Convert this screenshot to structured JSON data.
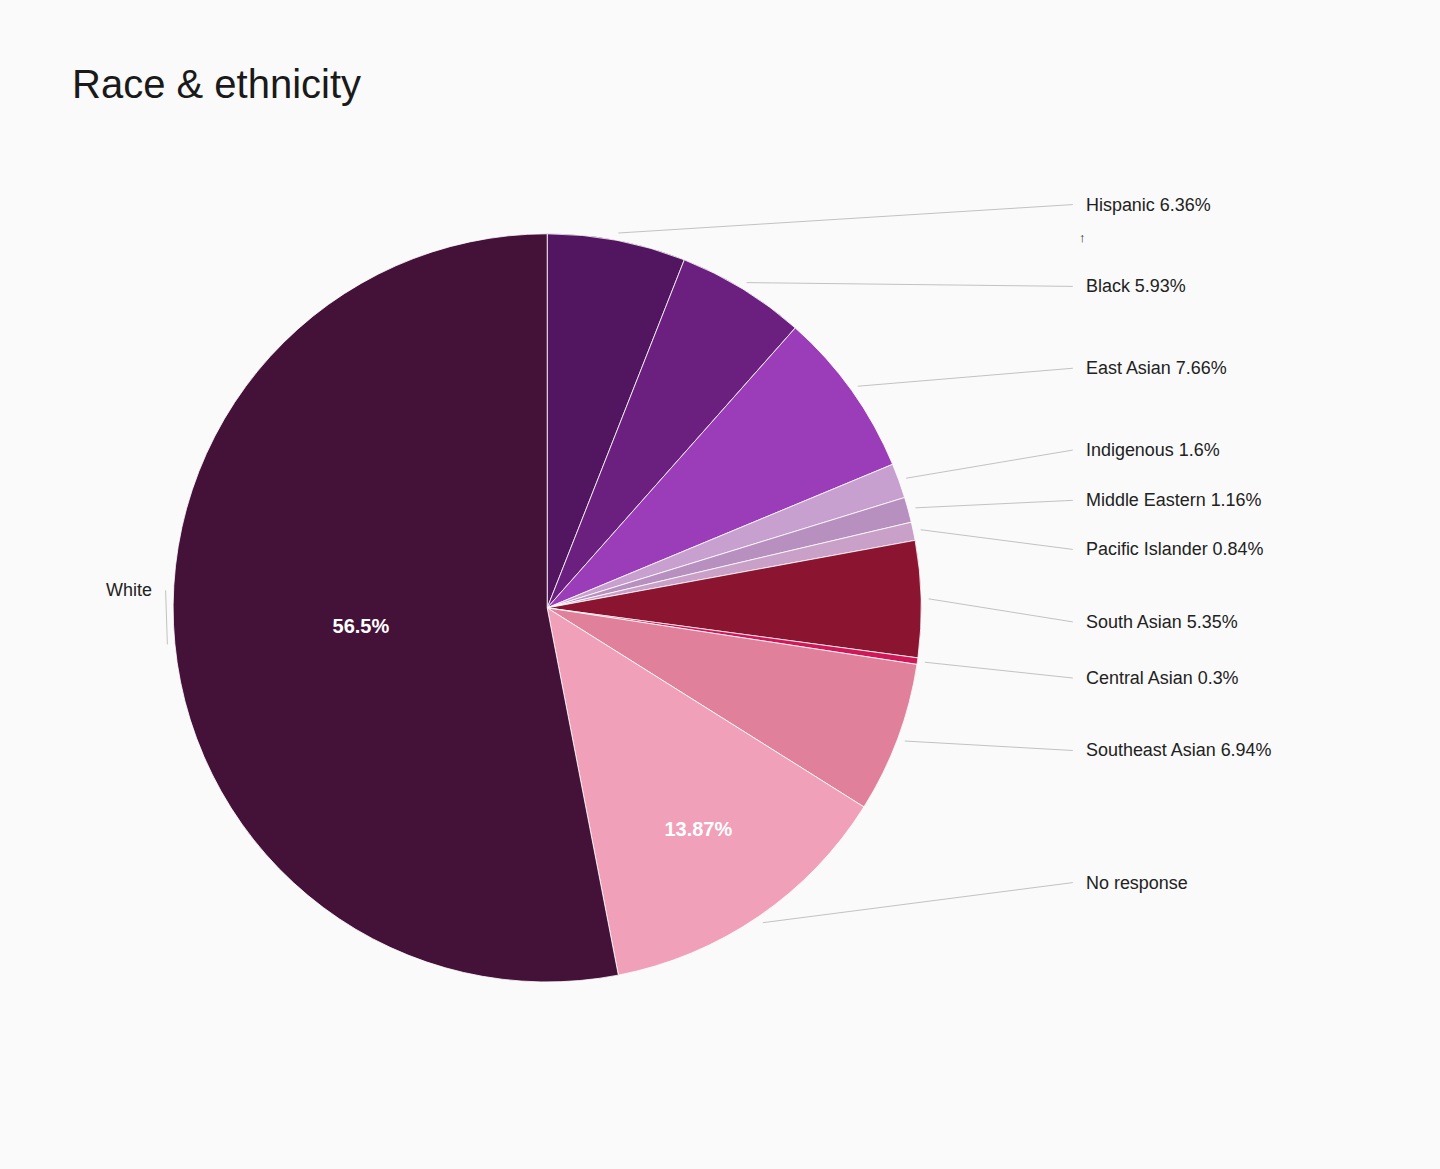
{
  "chart_data": {
    "type": "pie",
    "title": "Race & ethnicity",
    "categories": [
      "Hispanic 6.36%",
      "Black 5.93%",
      "East Asian 7.66%",
      "Indigenous 1.6%",
      "Middle Eastern 1.16%",
      "Pacific Islander 0.84%",
      "South Asian 5.35%",
      "Central Asian 0.3%",
      "Southeast Asian 6.94%",
      "No response",
      "White"
    ],
    "values": [
      6.36,
      5.93,
      7.66,
      1.6,
      1.16,
      0.84,
      5.35,
      0.3,
      6.94,
      13.87,
      56.5
    ],
    "value_labels": [
      null,
      null,
      null,
      null,
      null,
      null,
      null,
      null,
      null,
      "13.87%",
      "56.5%"
    ],
    "colors": [
      "#521660",
      "#6B2080",
      "#9B3DB8",
      "#C8A0D0",
      "#B890C0",
      "#C8A0C8",
      "#8B1530",
      "#D01858",
      "#E0809A",
      "#F0A0B8",
      "#441238"
    ],
    "annotations": [
      "↑"
    ]
  }
}
